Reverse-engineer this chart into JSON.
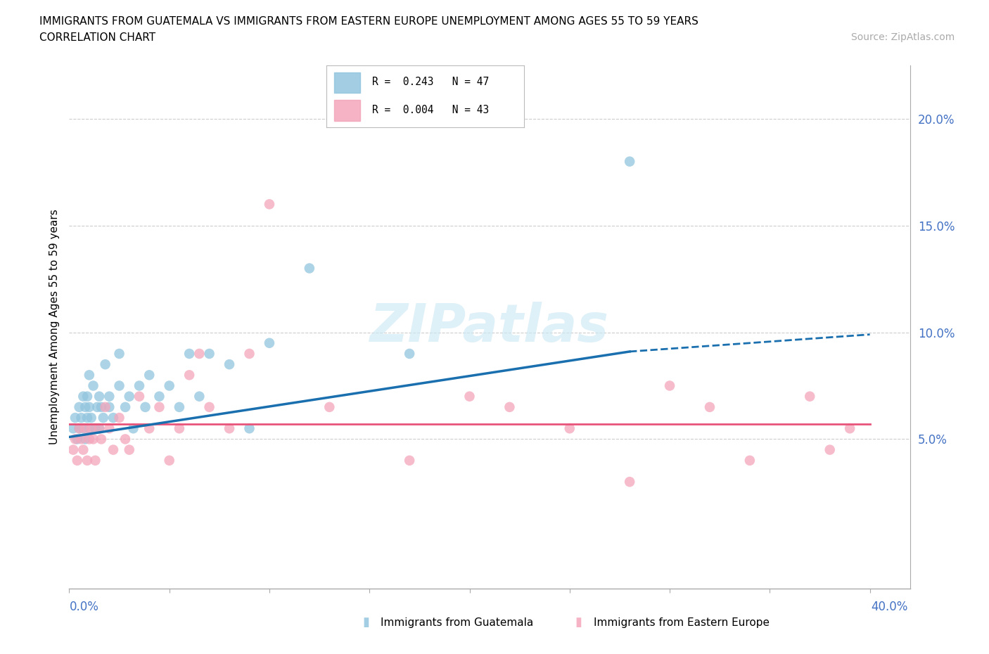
{
  "title_line1": "IMMIGRANTS FROM GUATEMALA VS IMMIGRANTS FROM EASTERN EUROPE UNEMPLOYMENT AMONG AGES 55 TO 59 YEARS",
  "title_line2": "CORRELATION CHART",
  "source": "Source: ZipAtlas.com",
  "ylabel": "Unemployment Among Ages 55 to 59 years",
  "xlim": [
    0.0,
    0.42
  ],
  "ylim": [
    -0.02,
    0.225
  ],
  "color_blue": "#92c5de",
  "color_pink": "#f4a6bb",
  "line_blue": "#1a6faf",
  "line_pink": "#e8547a",
  "watermark_color": "#cde8f5",
  "guatemala_x": [
    0.002,
    0.003,
    0.004,
    0.005,
    0.005,
    0.006,
    0.007,
    0.007,
    0.008,
    0.008,
    0.009,
    0.009,
    0.01,
    0.01,
    0.01,
    0.011,
    0.012,
    0.013,
    0.014,
    0.015,
    0.015,
    0.016,
    0.017,
    0.018,
    0.02,
    0.02,
    0.022,
    0.025,
    0.025,
    0.028,
    0.03,
    0.032,
    0.035,
    0.038,
    0.04,
    0.045,
    0.05,
    0.055,
    0.06,
    0.065,
    0.07,
    0.08,
    0.09,
    0.1,
    0.12,
    0.17,
    0.28
  ],
  "guatemala_y": [
    0.055,
    0.06,
    0.05,
    0.055,
    0.065,
    0.06,
    0.055,
    0.07,
    0.05,
    0.065,
    0.06,
    0.07,
    0.055,
    0.065,
    0.08,
    0.06,
    0.075,
    0.055,
    0.065,
    0.055,
    0.07,
    0.065,
    0.06,
    0.085,
    0.065,
    0.07,
    0.06,
    0.075,
    0.09,
    0.065,
    0.07,
    0.055,
    0.075,
    0.065,
    0.08,
    0.07,
    0.075,
    0.065,
    0.09,
    0.07,
    0.09,
    0.085,
    0.055,
    0.095,
    0.13,
    0.09,
    0.18
  ],
  "eastern_x": [
    0.002,
    0.003,
    0.004,
    0.005,
    0.006,
    0.007,
    0.008,
    0.009,
    0.01,
    0.011,
    0.012,
    0.013,
    0.015,
    0.016,
    0.018,
    0.02,
    0.022,
    0.025,
    0.028,
    0.03,
    0.035,
    0.04,
    0.045,
    0.05,
    0.055,
    0.06,
    0.065,
    0.07,
    0.08,
    0.09,
    0.1,
    0.13,
    0.17,
    0.2,
    0.22,
    0.25,
    0.28,
    0.3,
    0.32,
    0.34,
    0.37,
    0.38,
    0.39
  ],
  "eastern_y": [
    0.045,
    0.05,
    0.04,
    0.055,
    0.05,
    0.045,
    0.055,
    0.04,
    0.05,
    0.055,
    0.05,
    0.04,
    0.055,
    0.05,
    0.065,
    0.055,
    0.045,
    0.06,
    0.05,
    0.045,
    0.07,
    0.055,
    0.065,
    0.04,
    0.055,
    0.08,
    0.09,
    0.065,
    0.055,
    0.09,
    0.16,
    0.065,
    0.04,
    0.07,
    0.065,
    0.055,
    0.03,
    0.075,
    0.065,
    0.04,
    0.07,
    0.045,
    0.055
  ],
  "blue_trend_x0": 0.0,
  "blue_trend_y0": 0.051,
  "blue_trend_x1": 0.28,
  "blue_trend_y1": 0.091,
  "blue_trend_xdash": 0.4,
  "blue_trend_ydash": 0.099,
  "pink_trend_y": 0.057,
  "ytick_vals": [
    0.05,
    0.1,
    0.15,
    0.2
  ],
  "ytick_labels": [
    "5.0%",
    "10.0%",
    "15.0%",
    "20.0%"
  ]
}
